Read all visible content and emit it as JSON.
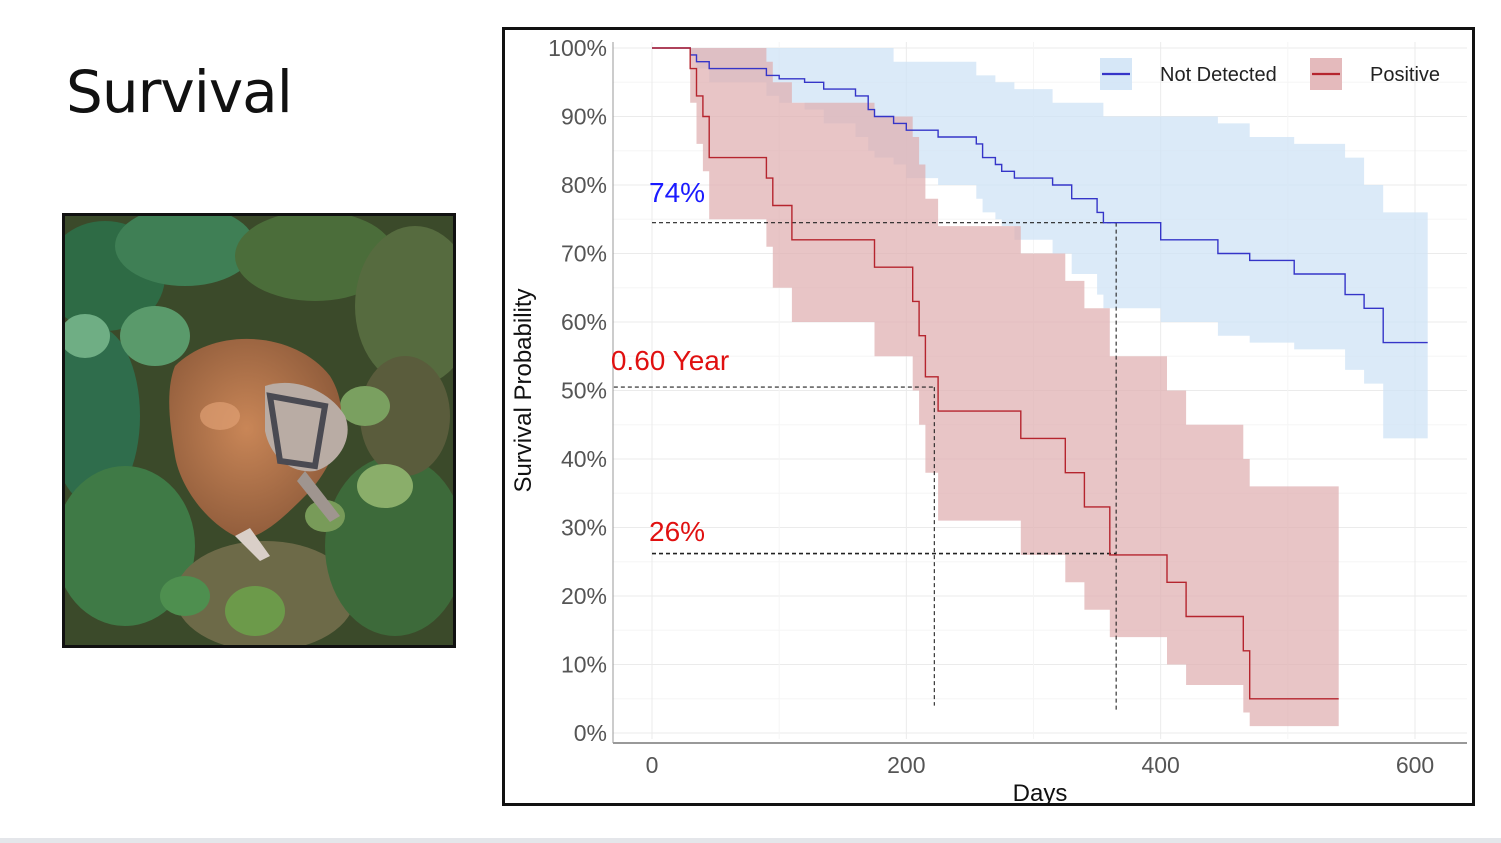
{
  "slide": {
    "title": "Survival"
  },
  "photo": {
    "icon": "deer-carcass-photo"
  },
  "chart_data": {
    "type": "line",
    "subtype": "kaplan-meier-step",
    "xlabel": "Days",
    "ylabel": "Survival Probability",
    "xlim": [
      -15,
      640
    ],
    "ylim": [
      0,
      1
    ],
    "xticks": [
      0,
      200,
      400,
      600
    ],
    "xtick_labels": [
      "0",
      "200",
      "400",
      "600"
    ],
    "yticks": [
      0,
      0.1,
      0.2,
      0.3,
      0.4,
      0.5,
      0.6,
      0.7,
      0.8,
      0.9,
      1.0
    ],
    "ytick_labels": [
      "0%",
      "10%",
      "20%",
      "30%",
      "40%",
      "50%",
      "60%",
      "70%",
      "80%",
      "90%",
      "100%"
    ],
    "grid": true,
    "legend_position": "top-right",
    "series": [
      {
        "name": "Not Detected",
        "color": "#3535c8",
        "band_color": "#cfe3f6",
        "x": [
          0,
          30,
          35,
          45,
          90,
          100,
          120,
          135,
          160,
          170,
          175,
          190,
          200,
          225,
          255,
          260,
          270,
          275,
          285,
          315,
          330,
          350,
          355,
          400,
          445,
          470,
          505,
          545,
          560,
          575,
          610
        ],
        "y": [
          1.0,
          0.99,
          0.98,
          0.97,
          0.96,
          0.955,
          0.95,
          0.94,
          0.93,
          0.91,
          0.9,
          0.89,
          0.88,
          0.87,
          0.86,
          0.84,
          0.83,
          0.82,
          0.81,
          0.8,
          0.78,
          0.76,
          0.745,
          0.72,
          0.7,
          0.69,
          0.67,
          0.64,
          0.62,
          0.57,
          0.57
        ],
        "lower": [
          1.0,
          0.99,
          0.97,
          0.95,
          0.93,
          0.92,
          0.91,
          0.89,
          0.87,
          0.85,
          0.84,
          0.83,
          0.81,
          0.8,
          0.78,
          0.76,
          0.75,
          0.74,
          0.72,
          0.7,
          0.67,
          0.64,
          0.62,
          0.6,
          0.58,
          0.57,
          0.56,
          0.53,
          0.51,
          0.43,
          0.43
        ],
        "upper": [
          1.0,
          1.0,
          1.0,
          1.0,
          1.0,
          1.0,
          1.0,
          1.0,
          1.0,
          1.0,
          1.0,
          0.98,
          0.98,
          0.98,
          0.96,
          0.96,
          0.95,
          0.95,
          0.94,
          0.92,
          0.92,
          0.92,
          0.9,
          0.9,
          0.89,
          0.87,
          0.86,
          0.84,
          0.8,
          0.76,
          0.76
        ]
      },
      {
        "name": "Positive",
        "color": "#b5252e",
        "band_color": "#dfaeb0",
        "x": [
          0,
          30,
          35,
          40,
          45,
          90,
          95,
          110,
          175,
          205,
          210,
          215,
          225,
          290,
          325,
          340,
          360,
          405,
          420,
          465,
          470,
          540
        ],
        "y": [
          1.0,
          0.97,
          0.93,
          0.9,
          0.84,
          0.81,
          0.77,
          0.72,
          0.68,
          0.63,
          0.58,
          0.52,
          0.47,
          0.43,
          0.38,
          0.33,
          0.26,
          0.22,
          0.17,
          0.12,
          0.05,
          0.05
        ],
        "lower": [
          1.0,
          0.92,
          0.86,
          0.82,
          0.75,
          0.71,
          0.65,
          0.6,
          0.55,
          0.5,
          0.45,
          0.38,
          0.31,
          0.26,
          0.22,
          0.18,
          0.14,
          0.1,
          0.07,
          0.03,
          0.01,
          0.01
        ],
        "upper": [
          1.0,
          1.0,
          1.0,
          1.0,
          1.0,
          0.98,
          0.95,
          0.92,
          0.9,
          0.87,
          0.83,
          0.78,
          0.74,
          0.7,
          0.66,
          0.62,
          0.55,
          0.5,
          0.45,
          0.4,
          0.36,
          0.36
        ]
      }
    ],
    "annotations": [
      {
        "text": "74%",
        "color": "#1a1aff",
        "x": 0,
        "y": 0.775
      },
      {
        "text": "0.60 Year",
        "color": "#e01010",
        "x": -30,
        "y": 0.53
      },
      {
        "text": "26%",
        "color": "#e01010",
        "x": 0,
        "y": 0.28
      }
    ],
    "reference_lines": [
      {
        "y": 0.745,
        "x_from": 0,
        "x_to": 365,
        "vertical_to": 0.03
      },
      {
        "y": 0.505,
        "x_from": -30,
        "x_to": 222,
        "vertical_to": 0.04
      },
      {
        "y": 0.262,
        "x_from": 0,
        "x_to": 365
      }
    ]
  }
}
